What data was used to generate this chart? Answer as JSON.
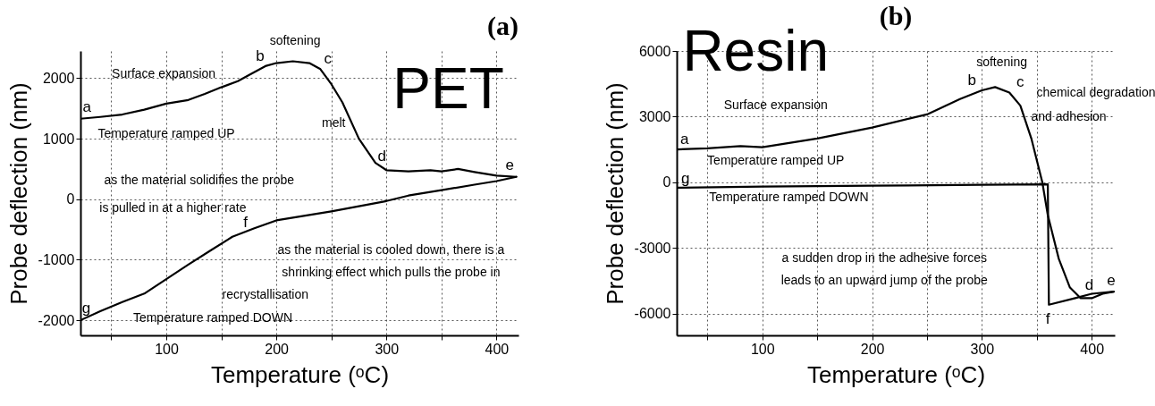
{
  "chart_data": [
    {
      "type": "line",
      "title": "(a)",
      "subtitle": "PET",
      "xlabel": "Temperature (ᵒC)",
      "ylabel": "Probe deflection (nm)",
      "xlim": [
        22,
        420
      ],
      "ylim": [
        -2250,
        2450
      ],
      "xticks": [
        {
          "value": 50,
          "label": null
        },
        100,
        {
          "value": 150,
          "label": null
        },
        200,
        {
          "value": 250,
          "label": null
        },
        300,
        {
          "value": 350,
          "label": null
        },
        400
      ],
      "yticks": [
        -2000,
        -1000,
        0,
        1000,
        2000
      ],
      "grid": true,
      "series": [
        {
          "color": "#000000",
          "x": [
            22,
            40,
            60,
            80,
            100,
            120,
            135,
            150,
            165,
            175,
            190,
            200,
            215,
            230,
            240,
            250,
            260,
            275,
            290,
            300,
            320,
            340,
            350,
            365,
            380,
            400,
            418
          ],
          "values": [
            1330,
            1360,
            1400,
            1480,
            1580,
            1640,
            1740,
            1850,
            1950,
            2050,
            2200,
            2250,
            2280,
            2250,
            2150,
            1900,
            1600,
            1000,
            600,
            480,
            460,
            480,
            460,
            500,
            450,
            390,
            370
          ]
        },
        {
          "color": "#000000",
          "x": [
            418,
            400,
            380,
            350,
            320,
            300,
            250,
            200,
            180,
            160,
            140,
            120,
            100,
            80,
            60,
            40,
            22
          ],
          "values": [
            370,
            300,
            240,
            150,
            60,
            -30,
            -200,
            -350,
            -480,
            -620,
            -850,
            -1080,
            -1320,
            -1560,
            -1700,
            -1850,
            -2000
          ]
        }
      ],
      "annotations": [
        "a",
        "b",
        "softening",
        "c",
        "Surface expansion",
        "melt",
        "Temperature ramped UP",
        "d",
        "e",
        "as the material solidifies the probe",
        "is pulled in at a higher rate",
        "f",
        "as the material is cooled down, there is a",
        "shrinking effect which pulls the probe in",
        "recrystallisation",
        "g",
        "Temperature ramped DOWN"
      ]
    },
    {
      "type": "line",
      "title": "(b)",
      "subtitle": "Resin",
      "xlabel": "Temperature (ᵒC)",
      "ylabel": "Probe deflection (nm)",
      "xlim": [
        22,
        421
      ],
      "ylim": [
        -7000,
        6000
      ],
      "xticks": [
        {
          "value": 50,
          "label": null
        },
        100,
        {
          "value": 150,
          "label": null
        },
        200,
        {
          "value": 250,
          "label": null
        },
        300,
        {
          "value": 350,
          "label": null
        },
        400
      ],
      "yticks": [
        -6000,
        -3000,
        0,
        3000,
        6000
      ],
      "grid": true,
      "series": [
        {
          "color": "#000000",
          "x": [
            22,
            50,
            80,
            100,
            150,
            200,
            250,
            280,
            300,
            312,
            325,
            335,
            345,
            355,
            360,
            370,
            380,
            390,
            400,
            410,
            420
          ],
          "values": [
            1500,
            1550,
            1650,
            1600,
            2000,
            2500,
            3100,
            3800,
            4200,
            4350,
            4100,
            3500,
            2000,
            0,
            -1500,
            -3500,
            -4800,
            -5300,
            -5300,
            -5100,
            -5000
          ]
        },
        {
          "color": "#000000",
          "x": [
            420,
            400,
            385,
            361,
            360,
            300,
            200,
            100,
            22
          ],
          "values": [
            -5000,
            -5100,
            -5300,
            -5600,
            -100,
            -120,
            -160,
            -200,
            -250
          ]
        }
      ],
      "annotations": [
        "softening",
        "b",
        "c",
        "chemical degradation",
        "and adhesion",
        "Surface expansion",
        "a",
        "Temperature ramped UP",
        "g",
        "Temperature ramped DOWN",
        "a sudden drop in the adhesive forces",
        "leads to an upward jump of the probe",
        "d",
        "e",
        "f"
      ]
    }
  ]
}
